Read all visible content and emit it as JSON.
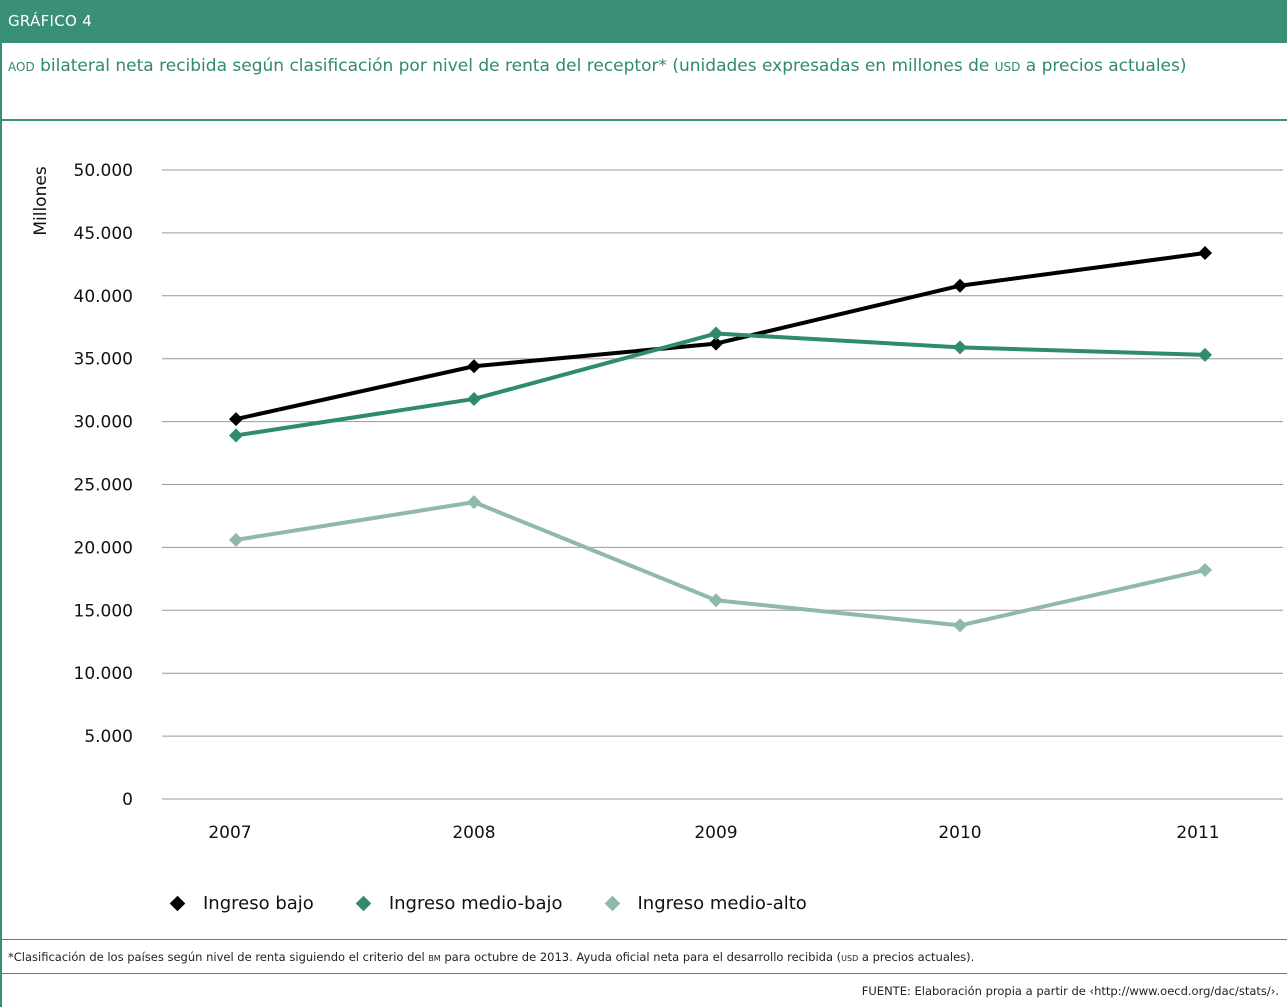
{
  "header": {
    "label": "GRÁFICO 4"
  },
  "title": {
    "abbr_aod": "aod",
    "part1": " bilateral neta recibida según clasificación por nivel de renta del receptor* (unidades expresadas en millones de ",
    "abbr_usd": "usd",
    "part2": " a precios actuales)"
  },
  "footnote": {
    "part1": "*Clasificación de los países según nivel de renta siguiendo el criterio del ",
    "abbr_bm": "bm",
    "part2": " para octubre de 2013. Ayuda oficial neta para el desarrollo recibida (",
    "abbr_usd": "usd",
    "part3": " a precios actuales)."
  },
  "source": "FUENTE: Elaboración propia a partir de ‹http://www.oecd.org/dac/stats/›.",
  "colors": {
    "accent": "#3a9076",
    "ingreso_bajo": "#000000",
    "ingreso_medio_bajo": "#2f8a6e",
    "ingreso_medio_alto": "#8fb9a8",
    "grid": "#9a9a9a"
  },
  "chart_data": {
    "type": "line",
    "ylabel": "Millones",
    "xlabel": "",
    "ylim": [
      0,
      50000
    ],
    "yticks": [
      0,
      5000,
      10000,
      15000,
      20000,
      25000,
      30000,
      35000,
      40000,
      45000,
      50000
    ],
    "ytick_labels": [
      "0",
      "5.000",
      "10.000",
      "15.000",
      "20.000",
      "25.000",
      "30.000",
      "35.000",
      "40.000",
      "45.000",
      "50.000"
    ],
    "categories": [
      "2007",
      "2008",
      "2009",
      "2010",
      "2011"
    ],
    "grid": "horizontal",
    "legend_position": "bottom",
    "marker": "diamond",
    "series": [
      {
        "name": "Ingreso bajo",
        "color": "#000000",
        "values": [
          30200,
          34400,
          36200,
          40800,
          43400
        ]
      },
      {
        "name": "Ingreso medio-bajo",
        "color": "#2f8a6e",
        "values": [
          28900,
          31800,
          37000,
          35900,
          35300
        ]
      },
      {
        "name": "Ingreso medio-alto",
        "color": "#8fb9a8",
        "values": [
          20600,
          23600,
          15800,
          13800,
          18200
        ]
      }
    ]
  }
}
